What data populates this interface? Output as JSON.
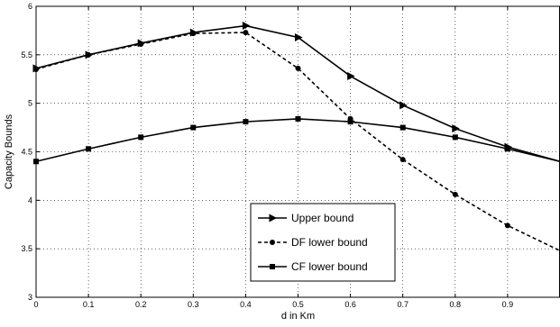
{
  "chart_data": {
    "type": "line",
    "title": "",
    "xlabel": "d in Km",
    "ylabel": "Capacity Bounds",
    "xlim": [
      0,
      1
    ],
    "ylim": [
      3,
      6
    ],
    "x_ticks": [
      "0",
      "0.1",
      "0.2",
      "0.3",
      "0.4",
      "0.5",
      "0.6",
      "0.7",
      "0.8",
      "0.9"
    ],
    "y_ticks": [
      "3",
      "3.5",
      "4",
      "4.5",
      "5",
      "5.5",
      "6"
    ],
    "grid": true,
    "legend_position": "bottom-center",
    "series": [
      {
        "name": "Upper bound",
        "marker": "triangle-right",
        "line_style": "solid",
        "color": "#000000",
        "x": [
          0,
          0.1,
          0.2,
          0.3,
          0.4,
          0.5,
          0.6,
          0.7,
          0.8,
          0.9,
          1.0
        ],
        "y": [
          5.36,
          5.5,
          5.62,
          5.73,
          5.8,
          5.68,
          5.28,
          4.98,
          4.74,
          4.55,
          4.4
        ]
      },
      {
        "name": "DF lower bound",
        "marker": "circle",
        "line_style": "dashed",
        "color": "#000000",
        "x": [
          0,
          0.1,
          0.2,
          0.3,
          0.4,
          0.5,
          0.6,
          0.7,
          0.8,
          0.9,
          1.0
        ],
        "y": [
          5.35,
          5.5,
          5.61,
          5.72,
          5.73,
          5.36,
          4.84,
          4.42,
          4.06,
          3.74,
          3.48
        ]
      },
      {
        "name": "CF lower bound",
        "marker": "square",
        "line_style": "solid",
        "color": "#000000",
        "x": [
          0,
          0.1,
          0.2,
          0.3,
          0.4,
          0.5,
          0.6,
          0.7,
          0.8,
          0.9,
          1.0
        ],
        "y": [
          4.4,
          4.53,
          4.65,
          4.75,
          4.81,
          4.84,
          4.81,
          4.75,
          4.65,
          4.53,
          4.4
        ]
      }
    ]
  }
}
